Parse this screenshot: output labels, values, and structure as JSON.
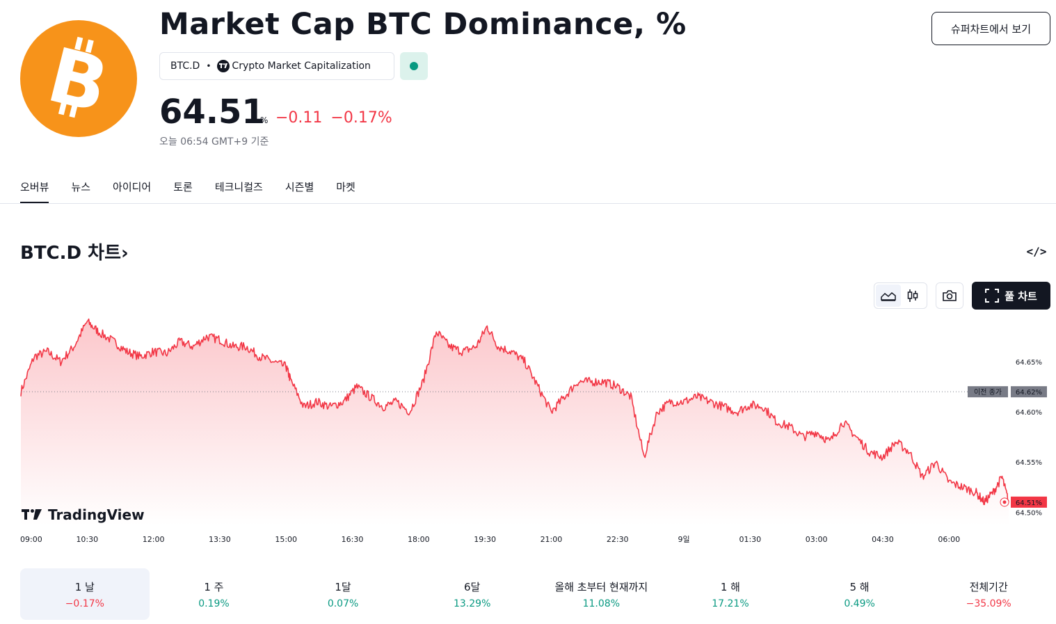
{
  "header": {
    "title": "Market Cap BTC Dominance, %",
    "ticker": "BTC.D",
    "source": "Crypto Market Capitalization",
    "price": "64.51",
    "unit": "%",
    "change_abs": "−0.11",
    "change_pct": "−0.17%",
    "as_of": "오늘 06:54 GMT+9 기준",
    "super_chart_label": "슈퍼차트에서 보기",
    "market_status": "open",
    "status_color": "#089981",
    "logo_icon": "bitcoin-logo"
  },
  "tabs": [
    "오버뷰",
    "뉴스",
    "아이디어",
    "토론",
    "테크니컬즈",
    "시즌별",
    "마켓"
  ],
  "active_tab": "오버뷰",
  "chart_section": {
    "title": "BTC.D 차트",
    "arrow": "›",
    "embed_icon": "</>",
    "full_chart_label": "풀 차트",
    "prev_close_label": "이전 종가",
    "brand": "TradingView"
  },
  "chart_data": {
    "type": "area",
    "x_ticks": [
      "09:00",
      "10:30",
      "12:00",
      "13:30",
      "15:00",
      "16:30",
      "18:00",
      "19:30",
      "21:00",
      "22:30",
      "9일",
      "01:30",
      "03:00",
      "04:30",
      "06:00"
    ],
    "y_ticks": [
      "64.65%",
      "64.60%",
      "64.55%",
      "64.50%"
    ],
    "y_tick_values": [
      64.65,
      64.6,
      64.55,
      64.5
    ],
    "ylim": [
      64.487,
      64.695
    ],
    "x_hours": [
      0,
      22.35
    ],
    "prev_close": 64.62,
    "prev_close_label": "64.62%",
    "last_value": 64.51,
    "last_label": "64.51%",
    "line_color": "#f23645",
    "series": [
      {
        "x": [
          0,
          0.3,
          0.6,
          0.9,
          1.2,
          1.5,
          1.75,
          2.1,
          2.4,
          2.7,
          3.0,
          3.3,
          3.6,
          3.9,
          4.2,
          4.5,
          4.8,
          5.1,
          5.4,
          5.7,
          6.0,
          6.1,
          6.4,
          6.7,
          7.0,
          7.3,
          7.6,
          7.9,
          8.2,
          8.5,
          8.8,
          9.1,
          9.4,
          9.7,
          10.0,
          10.3,
          10.55,
          10.8,
          11.1,
          11.4,
          11.7,
          12.0,
          12.3,
          12.6,
          12.9,
          13.2,
          13.5,
          13.8,
          14.1,
          14.4,
          14.7,
          15.0,
          15.3,
          15.6,
          15.9,
          16.2,
          16.5,
          16.8,
          17.1,
          17.4,
          17.7,
          18.0,
          18.3,
          18.6,
          18.9,
          19.2,
          19.5,
          19.8,
          20.1,
          20.4,
          20.7,
          21.0,
          21.3,
          21.6,
          21.8,
          22.0,
          22.2,
          22.35
        ],
        "y": [
          64.62,
          64.655,
          64.66,
          64.65,
          64.665,
          64.69,
          64.68,
          64.67,
          64.66,
          64.655,
          64.66,
          64.658,
          64.67,
          64.665,
          64.675,
          64.672,
          64.665,
          64.665,
          64.655,
          64.65,
          64.645,
          64.632,
          64.605,
          64.61,
          64.605,
          64.61,
          64.625,
          64.615,
          64.605,
          64.61,
          64.6,
          64.63,
          64.68,
          64.665,
          64.66,
          64.665,
          64.685,
          64.665,
          64.66,
          64.65,
          64.625,
          64.6,
          64.615,
          64.63,
          64.63,
          64.63,
          64.625,
          64.615,
          64.555,
          64.6,
          64.61,
          64.61,
          64.615,
          64.61,
          64.605,
          64.6,
          64.607,
          64.605,
          64.59,
          64.585,
          64.575,
          64.58,
          64.57,
          64.59,
          64.575,
          64.56,
          64.555,
          64.57,
          64.56,
          64.535,
          64.55,
          64.53,
          64.525,
          64.52,
          64.51,
          64.52,
          64.535,
          64.51
        ]
      }
    ]
  },
  "periods": [
    {
      "label": "1 날",
      "value": "−0.17%",
      "tone": "neg",
      "active": true
    },
    {
      "label": "1 주",
      "value": "0.19%",
      "tone": "pos",
      "active": false
    },
    {
      "label": "1달",
      "value": "0.07%",
      "tone": "pos",
      "active": false
    },
    {
      "label": "6달",
      "value": "13.29%",
      "tone": "pos",
      "active": false
    },
    {
      "label": "올해 초부터 현재까지",
      "value": "11.08%",
      "tone": "pos",
      "active": false
    },
    {
      "label": "1 해",
      "value": "17.21%",
      "tone": "pos",
      "active": false
    },
    {
      "label": "5 해",
      "value": "0.49%",
      "tone": "pos",
      "active": false
    },
    {
      "label": "전체기간",
      "value": "−35.09%",
      "tone": "neg",
      "active": false
    }
  ]
}
